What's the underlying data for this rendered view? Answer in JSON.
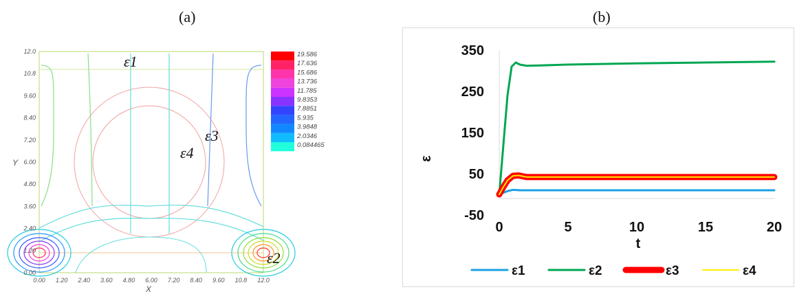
{
  "panels": {
    "a_label": "(a)",
    "b_label": "(b)"
  },
  "contour": {
    "x_ticks": [
      "0.00",
      "1.20",
      "2.40",
      "3.60",
      "4.80",
      "6.00",
      "7.20",
      "8.40",
      "9.60",
      "10.8",
      "12.0"
    ],
    "y_ticks": [
      "0.00",
      "1.20",
      "2.40",
      "3.60",
      "4.80",
      "6.00",
      "7.20",
      "8.40",
      "9.60",
      "10.8",
      "12.0"
    ],
    "xlabel": "X",
    "ylabel": "Y",
    "legend_values": [
      "19.586",
      "17.636",
      "15.686",
      "13.736",
      "11.785",
      "9.8353",
      "7.8851",
      "5.935",
      "3.9848",
      "2.0346",
      "0.084465"
    ],
    "legend_colors": [
      "#ff0000",
      "#ff2266",
      "#ff33aa",
      "#ee44dd",
      "#cc33ff",
      "#8833ff",
      "#3344ff",
      "#2266ff",
      "#1188ff",
      "#11bbff",
      "#22ffdd"
    ],
    "region_labels": [
      "ε1",
      "ε2",
      "ε3",
      "ε4"
    ]
  },
  "chart_data": {
    "type": "line",
    "title": "",
    "xlabel": "t",
    "ylabel": "ε",
    "xlim": [
      0,
      20
    ],
    "ylim": [
      -50,
      350
    ],
    "x_ticks": [
      0,
      5,
      10,
      15,
      20
    ],
    "y_ticks": [
      350,
      250,
      150,
      50,
      -50
    ],
    "legend_position": "bottom",
    "series": [
      {
        "name": "ε1",
        "color": "#1ba1e2",
        "width": 3,
        "x": [
          0,
          0.3,
          0.6,
          1.0,
          1.5,
          2,
          5,
          10,
          15,
          20
        ],
        "y": [
          0,
          4,
          8,
          11,
          10,
          10,
          10,
          10,
          10,
          10
        ]
      },
      {
        "name": "ε2",
        "color": "#00a651",
        "width": 3,
        "x": [
          0,
          0.3,
          0.6,
          0.9,
          1.2,
          1.5,
          2,
          3,
          5,
          10,
          15,
          20
        ],
        "y": [
          0,
          120,
          240,
          310,
          320,
          315,
          312,
          313,
          315,
          318,
          320,
          322
        ]
      },
      {
        "name": "ε3",
        "color": "#ff0000",
        "width": 9,
        "x": [
          0,
          0.3,
          0.6,
          1.0,
          1.4,
          2,
          5,
          10,
          15,
          20
        ],
        "y": [
          0,
          18,
          34,
          45,
          46,
          42,
          42,
          42,
          42,
          42
        ]
      },
      {
        "name": "ε4",
        "color": "#ffee00",
        "width": 2,
        "x": [
          0,
          0.3,
          0.6,
          1.0,
          1.4,
          2,
          5,
          10,
          15,
          20
        ],
        "y": [
          0,
          18,
          34,
          45,
          46,
          42,
          42,
          42,
          42,
          42
        ]
      }
    ]
  }
}
